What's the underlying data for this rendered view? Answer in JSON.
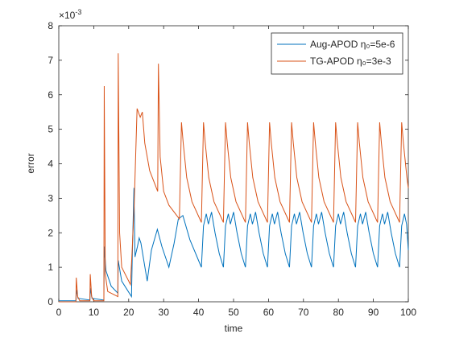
{
  "chart_data": {
    "type": "line",
    "xlabel": "time",
    "ylabel": "error",
    "y_exponent_base": "×10",
    "y_exponent": "-3",
    "xlim": [
      0,
      100
    ],
    "xticks": [
      0,
      10,
      20,
      30,
      40,
      50,
      60,
      70,
      80,
      90,
      100
    ],
    "ylim": [
      0,
      8
    ],
    "yticks": [
      0,
      1,
      2,
      3,
      4,
      5,
      6,
      7,
      8
    ],
    "grid": false,
    "legend": "upper right",
    "series": [
      {
        "name": "Aug-APOD η₀=5e-6",
        "color": "#0072BD",
        "x": [
          0,
          4.9,
          5,
          5.5,
          8.9,
          9,
          9.5,
          12.9,
          13,
          13.5,
          15,
          16.9,
          17,
          18,
          20.8,
          21,
          21.5,
          21.8,
          22.5,
          23,
          23.5,
          25.3,
          26.5,
          28.2,
          29.5,
          31.5,
          33,
          34.2,
          35.5,
          37.5,
          40.8,
          41.4,
          42.2,
          42.8,
          43.7,
          44.7,
          45.9,
          47.1,
          47.7,
          48.5,
          49.1,
          50,
          51,
          52.2,
          53.4,
          54,
          54.8,
          55.4,
          56.3,
          57.3,
          58.5,
          59.7,
          60.3,
          61.1,
          61.7,
          62.6,
          63.6,
          64.8,
          66,
          66.6,
          67.4,
          68,
          68.9,
          69.9,
          71.1,
          72.3,
          72.9,
          73.7,
          74.3,
          75.2,
          76.2,
          77.4,
          78.6,
          79.2,
          80,
          80.6,
          81.5,
          82.5,
          83.7,
          84.9,
          85.5,
          86.3,
          86.9,
          87.8,
          88.8,
          90,
          91.2,
          91.8,
          92.6,
          93.2,
          94.1,
          95.1,
          96.3,
          97.5,
          98.1,
          98.9,
          99.5,
          100
        ],
        "values": [
          0.03,
          0.03,
          0.35,
          0.1,
          0.05,
          0.4,
          0.1,
          0.05,
          1.6,
          0.9,
          0.45,
          0.25,
          1.2,
          0.6,
          0.15,
          1.2,
          3.3,
          1.3,
          1.6,
          1.85,
          1.7,
          0.6,
          1.5,
          2.1,
          1.6,
          1.0,
          1.7,
          2.4,
          2.5,
          1.8,
          1.0,
          2.2,
          2.55,
          2.25,
          2.6,
          2.0,
          1.4,
          1.0,
          2.2,
          2.55,
          2.25,
          2.6,
          2.0,
          1.4,
          1.0,
          2.2,
          2.55,
          2.25,
          2.6,
          2.0,
          1.4,
          1.0,
          2.2,
          2.55,
          2.25,
          2.6,
          2.0,
          1.4,
          1.0,
          2.2,
          2.55,
          2.25,
          2.6,
          2.0,
          1.4,
          1.0,
          2.2,
          2.55,
          2.25,
          2.6,
          2.0,
          1.4,
          1.0,
          2.2,
          2.55,
          2.25,
          2.6,
          2.0,
          1.4,
          1.0,
          2.2,
          2.55,
          2.25,
          2.6,
          2.0,
          1.4,
          1.0,
          2.2,
          2.55,
          2.25,
          2.6,
          2.0,
          1.4,
          1.0,
          2.2,
          2.55,
          2.25,
          1.5
        ]
      },
      {
        "name": "TG-APOD η₀=3e-3",
        "color": "#D95319",
        "x": [
          0,
          4.9,
          5,
          5.4,
          6,
          8.9,
          9,
          9.4,
          10,
          12.9,
          13,
          13.3,
          14,
          16.9,
          17,
          17.4,
          18,
          20.5,
          21,
          21.6,
          22.4,
          23.3,
          23.9,
          24.6,
          26,
          28.3,
          28.5,
          29,
          30,
          31.5,
          34.5,
          35.1,
          35.6,
          36.6,
          38.1,
          40.8,
          41.4,
          41.9,
          42.9,
          44.4,
          47.1,
          47.7,
          48.2,
          49.2,
          50.7,
          53.4,
          54,
          54.5,
          55.5,
          57,
          59.7,
          60.3,
          60.8,
          61.8,
          63.3,
          66,
          66.6,
          67.1,
          68.1,
          69.6,
          72.3,
          72.9,
          73.4,
          74.4,
          75.9,
          78.6,
          79.2,
          79.7,
          80.7,
          82.2,
          84.9,
          85.5,
          86,
          87,
          88.5,
          91.2,
          91.8,
          92.3,
          93.3,
          94.8,
          97.5,
          98.1,
          98.6,
          99.6,
          100
        ],
        "values": [
          0,
          0,
          0.7,
          0.15,
          0.03,
          0.03,
          0.8,
          0.15,
          0.03,
          0.03,
          6.25,
          0.8,
          0.3,
          0.15,
          7.2,
          2.0,
          1.0,
          0.5,
          1.5,
          2.9,
          5.6,
          5.35,
          5.5,
          4.6,
          3.8,
          3.2,
          6.9,
          4.2,
          3.2,
          2.8,
          2.4,
          5.2,
          4.6,
          3.6,
          2.9,
          2.3,
          5.2,
          4.6,
          3.6,
          2.9,
          2.3,
          5.2,
          4.6,
          3.6,
          2.9,
          2.3,
          5.2,
          4.6,
          3.6,
          2.9,
          2.3,
          5.2,
          4.6,
          3.6,
          2.9,
          2.3,
          5.2,
          4.6,
          3.6,
          2.9,
          2.3,
          5.2,
          4.6,
          3.6,
          2.9,
          2.3,
          5.2,
          4.6,
          3.6,
          2.9,
          2.3,
          5.2,
          4.6,
          3.6,
          2.9,
          2.3,
          5.2,
          4.6,
          3.6,
          2.9,
          2.3,
          5.2,
          4.6,
          3.6,
          3.3
        ]
      }
    ]
  }
}
